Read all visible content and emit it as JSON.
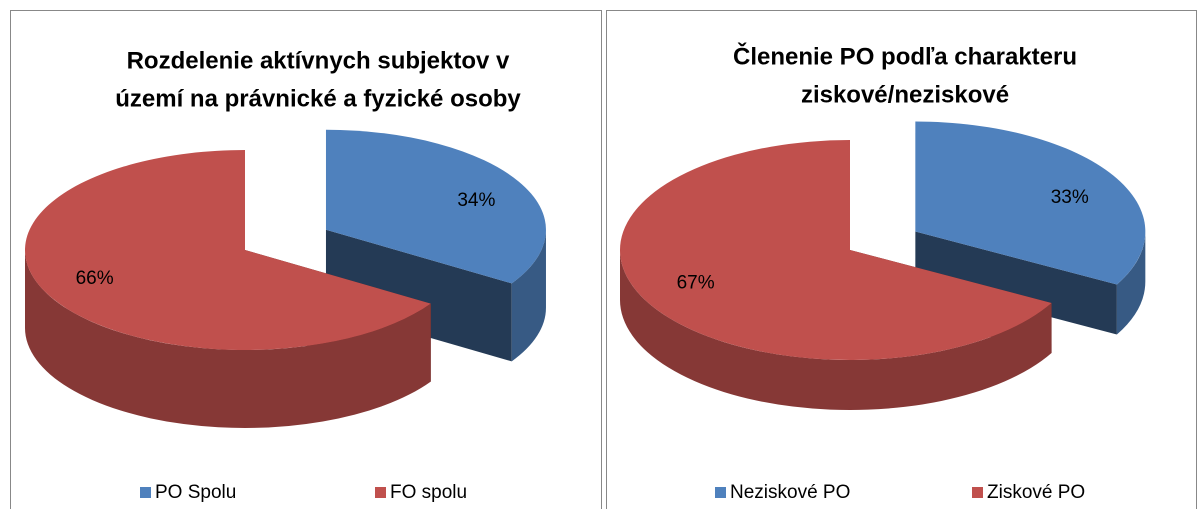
{
  "chart_data": [
    {
      "type": "pie",
      "title": [
        "Rozdelenie aktívnych subjektov v",
        "území na právnické a fyzické osoby"
      ],
      "categories": [
        "PO Spolu",
        "FO spolu"
      ],
      "values": [
        34,
        66
      ],
      "value_labels": [
        "34%",
        "66%"
      ],
      "colors": [
        "#4f81bd",
        "#c0504d"
      ],
      "legend": "bottom"
    },
    {
      "type": "pie",
      "title": [
        "Členenie PO podľa charakteru",
        "ziskové/neziskové"
      ],
      "categories": [
        "Neziskové PO",
        "Ziskové PO"
      ],
      "values": [
        33,
        67
      ],
      "value_labels": [
        "33%",
        "67%"
      ],
      "colors": [
        "#4f81bd",
        "#c0504d"
      ],
      "legend": "bottom"
    }
  ]
}
